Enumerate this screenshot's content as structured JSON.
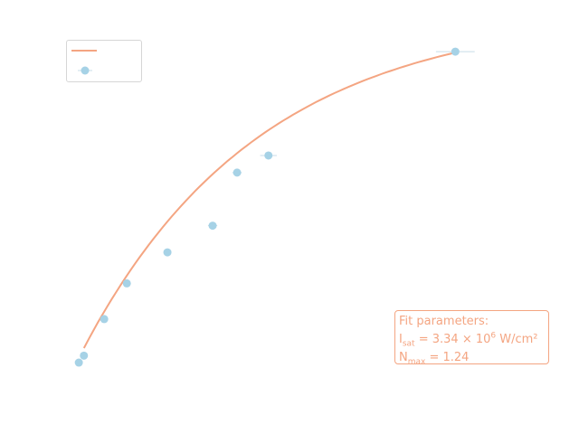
{
  "chart_data": {
    "type": "scatter",
    "title": "",
    "xlabel": "",
    "ylabel": "",
    "xlim": [
      0,
      10
    ],
    "ylim": [
      0,
      1.2
    ],
    "grid": false,
    "legend": "upper-left",
    "colors": {
      "fit": "#f4a582",
      "data": "#a6d2e6",
      "errorbar": "#c8dde8"
    },
    "fit_curve": {
      "model": "N_max * (1 - exp(-I / I_sat)) saturation",
      "color": "#f4a582"
    },
    "series": [
      {
        "kind": "data",
        "x": [
          0.14,
          0.25,
          0.69,
          1.18,
          2.06,
          3.04,
          3.57,
          4.25,
          8.3
        ],
        "y": [
          0.028,
          0.052,
          0.178,
          0.301,
          0.408,
          0.5,
          0.683,
          0.742,
          1.1
        ],
        "xerr": [
          0.0,
          0.0,
          0.0,
          0.0,
          0.0,
          0.1,
          0.1,
          0.18,
          0.42
        ]
      }
    ],
    "annotation": {
      "heading": "Fit parameters:",
      "line1_prefix": "I",
      "line1_sub": "sat",
      "line1_mid": " = 3.34 × 10",
      "line1_sup": "6",
      "line1_suffix": " W/cm²",
      "line2_prefix": "N",
      "line2_sub": "max",
      "line2_suffix": " = 1.24"
    }
  }
}
